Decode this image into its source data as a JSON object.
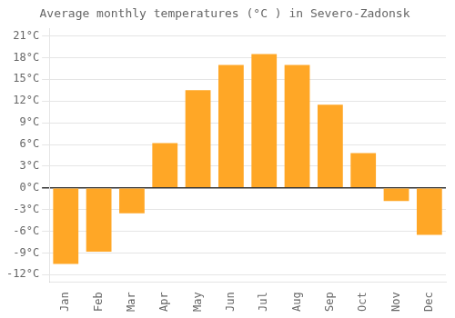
{
  "chart_data": {
    "type": "bar",
    "title": "Average monthly temperatures (°C ) in Severo-Zadonsk",
    "categories": [
      "Jan",
      "Feb",
      "Mar",
      "Apr",
      "May",
      "Jun",
      "Jul",
      "Aug",
      "Sep",
      "Oct",
      "Nov",
      "Dec"
    ],
    "values": [
      -10.5,
      -8.8,
      -3.5,
      6.2,
      13.5,
      17.0,
      18.5,
      17.0,
      11.5,
      4.8,
      -1.8,
      -6.5
    ],
    "color": "#FFA726",
    "ylim": [
      -13,
      22
    ],
    "yticks": [
      {
        "value": -12,
        "label": "-12°C"
      },
      {
        "value": -9,
        "label": "-9°C"
      },
      {
        "value": -6,
        "label": "-6°C"
      },
      {
        "value": -3,
        "label": "-3°C"
      },
      {
        "value": 0,
        "label": "0°C"
      },
      {
        "value": 3,
        "label": "3°C"
      },
      {
        "value": 6,
        "label": "6°C"
      },
      {
        "value": 9,
        "label": "9°C"
      },
      {
        "value": 12,
        "label": "12°C"
      },
      {
        "value": 15,
        "label": "15°C"
      },
      {
        "value": 18,
        "label": "18°C"
      },
      {
        "value": 21,
        "label": "21°C"
      }
    ],
    "grid": true
  }
}
